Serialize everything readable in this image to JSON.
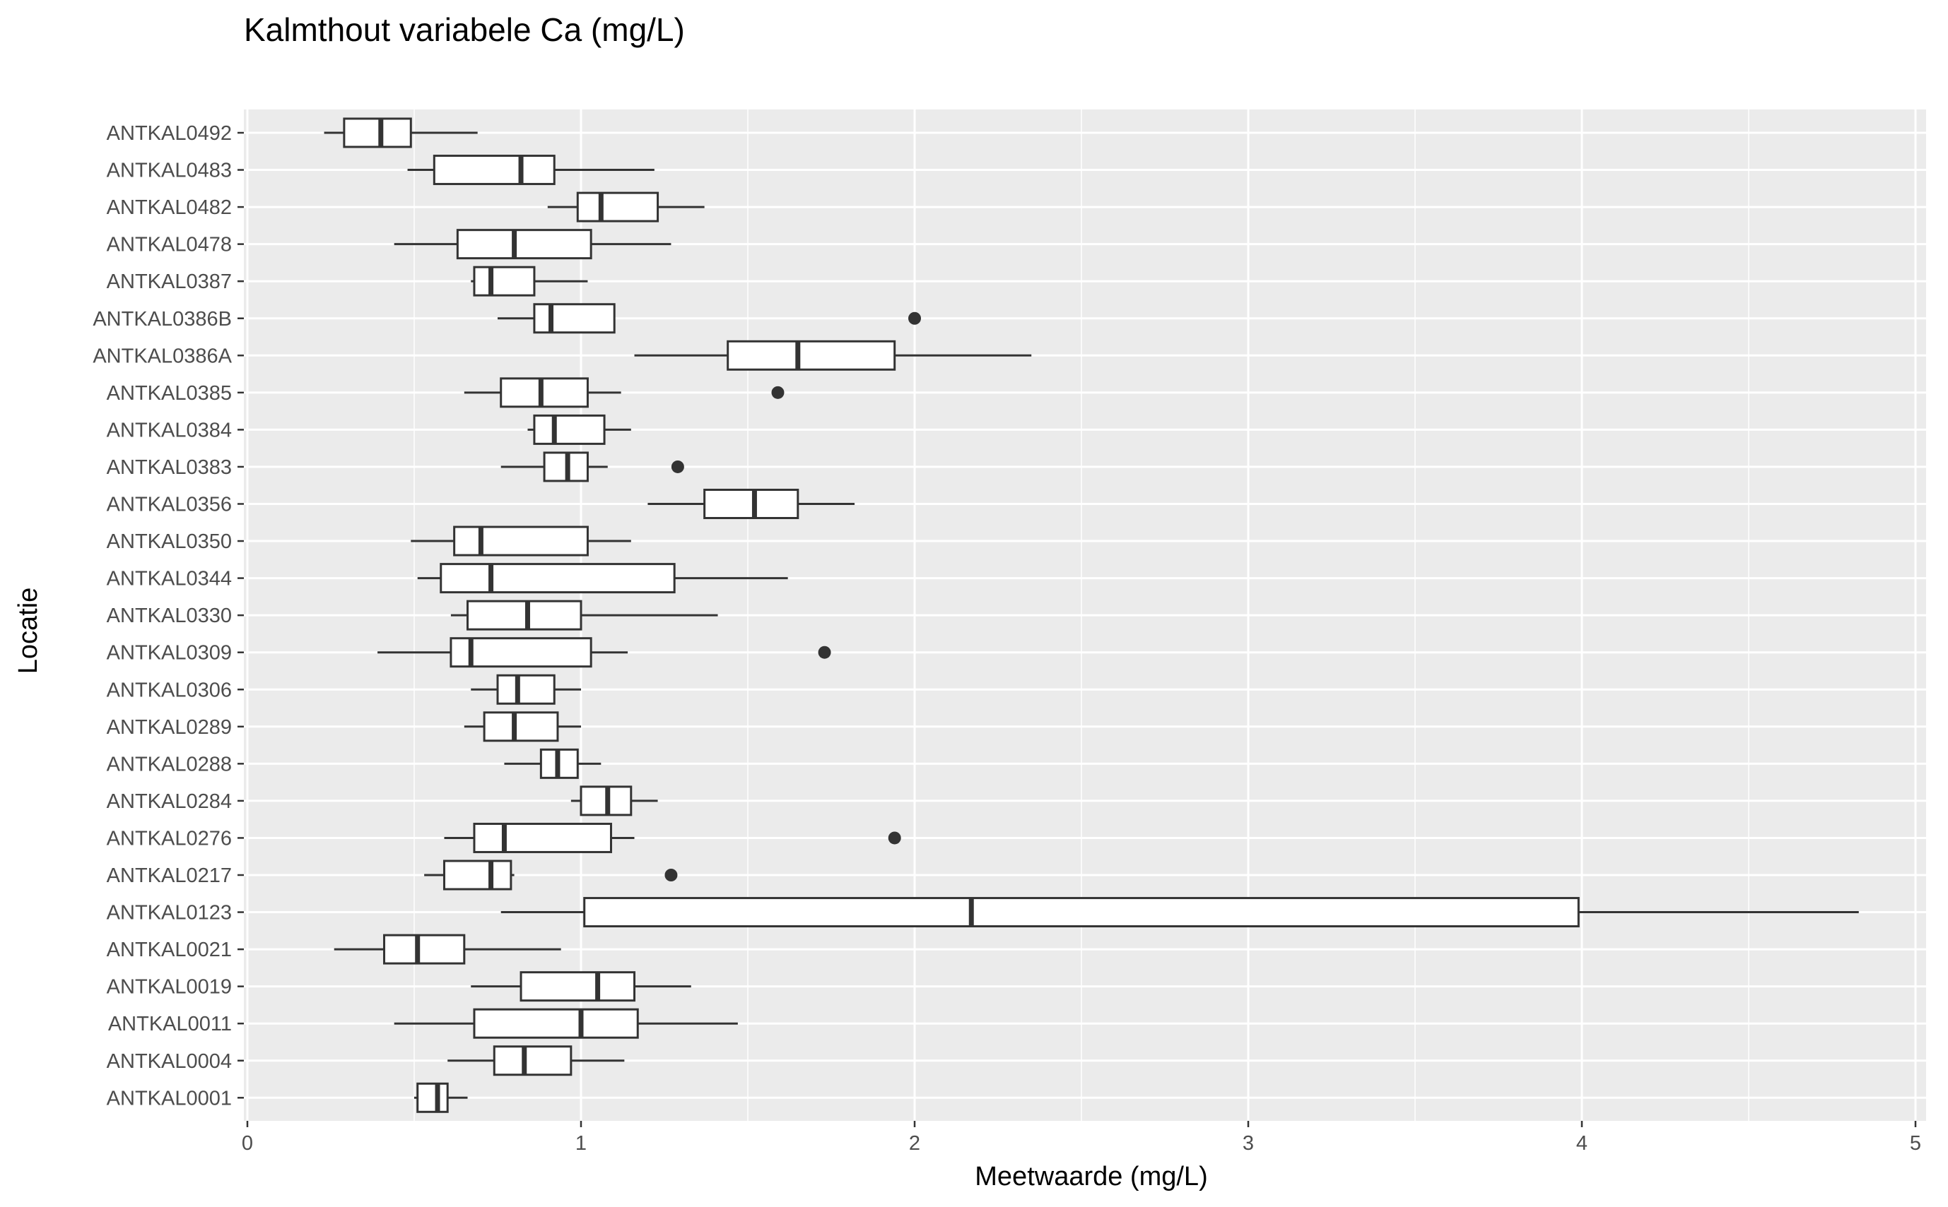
{
  "chart_data": {
    "type": "boxplot",
    "orientation": "horizontal",
    "title": "Kalmthout variabele Ca (mg/L)",
    "xlabel": "Meetwaarde (mg/L)",
    "ylabel": "Locatie",
    "xlim": [
      0,
      5
    ],
    "x_ticks": [
      0,
      1,
      2,
      3,
      4,
      5
    ],
    "grid": true,
    "background": "#ebebeb",
    "gridline_color": "#ffffff",
    "box_fill": "#ffffff",
    "box_stroke": "#333333",
    "categories": [
      "ANTKAL0492",
      "ANTKAL0483",
      "ANTKAL0482",
      "ANTKAL0478",
      "ANTKAL0387",
      "ANTKAL0386B",
      "ANTKAL0386A",
      "ANTKAL0385",
      "ANTKAL0384",
      "ANTKAL0383",
      "ANTKAL0356",
      "ANTKAL0350",
      "ANTKAL0344",
      "ANTKAL0330",
      "ANTKAL0309",
      "ANTKAL0306",
      "ANTKAL0289",
      "ANTKAL0288",
      "ANTKAL0284",
      "ANTKAL0276",
      "ANTKAL0217",
      "ANTKAL0123",
      "ANTKAL0021",
      "ANTKAL0019",
      "ANTKAL0011",
      "ANTKAL0004",
      "ANTKAL0001"
    ],
    "boxes": [
      {
        "location": "ANTKAL0492",
        "min": 0.23,
        "q1": 0.29,
        "median": 0.4,
        "q3": 0.49,
        "max": 0.69,
        "outliers": []
      },
      {
        "location": "ANTKAL0483",
        "min": 0.48,
        "q1": 0.56,
        "median": 0.82,
        "q3": 0.92,
        "max": 1.22,
        "outliers": []
      },
      {
        "location": "ANTKAL0482",
        "min": 0.9,
        "q1": 0.99,
        "median": 1.06,
        "q3": 1.23,
        "max": 1.37,
        "outliers": []
      },
      {
        "location": "ANTKAL0478",
        "min": 0.44,
        "q1": 0.63,
        "median": 0.8,
        "q3": 1.03,
        "max": 1.27,
        "outliers": []
      },
      {
        "location": "ANTKAL0387",
        "min": 0.67,
        "q1": 0.68,
        "median": 0.73,
        "q3": 0.86,
        "max": 1.02,
        "outliers": []
      },
      {
        "location": "ANTKAL0386B",
        "min": 0.75,
        "q1": 0.86,
        "median": 0.91,
        "q3": 1.1,
        "max": 1.1,
        "outliers": [
          2.0
        ]
      },
      {
        "location": "ANTKAL0386A",
        "min": 1.16,
        "q1": 1.44,
        "median": 1.65,
        "q3": 1.94,
        "max": 2.35,
        "outliers": []
      },
      {
        "location": "ANTKAL0385",
        "min": 0.65,
        "q1": 0.76,
        "median": 0.88,
        "q3": 1.02,
        "max": 1.12,
        "outliers": [
          1.59
        ]
      },
      {
        "location": "ANTKAL0384",
        "min": 0.84,
        "q1": 0.86,
        "median": 0.92,
        "q3": 1.07,
        "max": 1.15,
        "outliers": []
      },
      {
        "location": "ANTKAL0383",
        "min": 0.76,
        "q1": 0.89,
        "median": 0.96,
        "q3": 1.02,
        "max": 1.08,
        "outliers": [
          1.29
        ]
      },
      {
        "location": "ANTKAL0356",
        "min": 1.2,
        "q1": 1.37,
        "median": 1.52,
        "q3": 1.65,
        "max": 1.82,
        "outliers": []
      },
      {
        "location": "ANTKAL0350",
        "min": 0.49,
        "q1": 0.62,
        "median": 0.7,
        "q3": 1.02,
        "max": 1.15,
        "outliers": []
      },
      {
        "location": "ANTKAL0344",
        "min": 0.51,
        "q1": 0.58,
        "median": 0.73,
        "q3": 1.28,
        "max": 1.62,
        "outliers": []
      },
      {
        "location": "ANTKAL0330",
        "min": 0.61,
        "q1": 0.66,
        "median": 0.84,
        "q3": 1.0,
        "max": 1.41,
        "outliers": []
      },
      {
        "location": "ANTKAL0309",
        "min": 0.39,
        "q1": 0.61,
        "median": 0.67,
        "q3": 1.03,
        "max": 1.14,
        "outliers": [
          1.73
        ]
      },
      {
        "location": "ANTKAL0306",
        "min": 0.67,
        "q1": 0.75,
        "median": 0.81,
        "q3": 0.92,
        "max": 1.0,
        "outliers": []
      },
      {
        "location": "ANTKAL0289",
        "min": 0.65,
        "q1": 0.71,
        "median": 0.8,
        "q3": 0.93,
        "max": 1.0,
        "outliers": []
      },
      {
        "location": "ANTKAL0288",
        "min": 0.77,
        "q1": 0.88,
        "median": 0.93,
        "q3": 0.99,
        "max": 1.06,
        "outliers": []
      },
      {
        "location": "ANTKAL0284",
        "min": 0.97,
        "q1": 1.0,
        "median": 1.08,
        "q3": 1.15,
        "max": 1.23,
        "outliers": []
      },
      {
        "location": "ANTKAL0276",
        "min": 0.59,
        "q1": 0.68,
        "median": 0.77,
        "q3": 1.09,
        "max": 1.16,
        "outliers": [
          1.94
        ]
      },
      {
        "location": "ANTKAL0217",
        "min": 0.53,
        "q1": 0.59,
        "median": 0.73,
        "q3": 0.79,
        "max": 0.8,
        "outliers": [
          1.27
        ]
      },
      {
        "location": "ANTKAL0123",
        "min": 0.76,
        "q1": 1.01,
        "median": 2.17,
        "q3": 3.99,
        "max": 4.83,
        "outliers": []
      },
      {
        "location": "ANTKAL0021",
        "min": 0.26,
        "q1": 0.41,
        "median": 0.51,
        "q3": 0.65,
        "max": 0.94,
        "outliers": []
      },
      {
        "location": "ANTKAL0019",
        "min": 0.67,
        "q1": 0.82,
        "median": 1.05,
        "q3": 1.16,
        "max": 1.33,
        "outliers": []
      },
      {
        "location": "ANTKAL0011",
        "min": 0.44,
        "q1": 0.68,
        "median": 1.0,
        "q3": 1.17,
        "max": 1.47,
        "outliers": []
      },
      {
        "location": "ANTKAL0004",
        "min": 0.6,
        "q1": 0.74,
        "median": 0.83,
        "q3": 0.97,
        "max": 1.13,
        "outliers": []
      },
      {
        "location": "ANTKAL0001",
        "min": 0.5,
        "q1": 0.51,
        "median": 0.57,
        "q3": 0.6,
        "max": 0.66,
        "outliers": []
      }
    ]
  }
}
